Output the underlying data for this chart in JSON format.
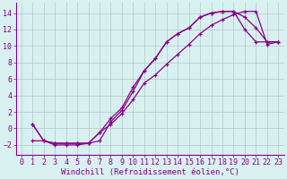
{
  "background_color": "#d8f0f0",
  "line_color": "#880088",
  "grid_color": "#b0c8c8",
  "xlabel": "Windchill (Refroidissement éolien,°C)",
  "xlabel_fontsize": 6.5,
  "tick_fontsize": 6.0,
  "xlim": [
    -0.5,
    23.5
  ],
  "ylim": [
    -3.2,
    15.2
  ],
  "yticks": [
    -2,
    0,
    2,
    4,
    6,
    8,
    10,
    12,
    14
  ],
  "xticks": [
    0,
    1,
    2,
    3,
    4,
    5,
    6,
    7,
    8,
    9,
    10,
    11,
    12,
    13,
    14,
    15,
    16,
    17,
    18,
    19,
    20,
    21,
    22,
    23
  ],
  "series1_x": [
    1,
    2,
    3,
    4,
    5,
    6,
    7,
    8,
    9,
    10,
    11,
    12,
    13,
    14,
    15,
    16,
    17,
    18,
    19,
    20,
    21,
    22,
    23
  ],
  "series1_y": [
    0.5,
    -1.5,
    -1.8,
    -1.8,
    -1.8,
    -1.8,
    -1.5,
    0.8,
    2.2,
    4.5,
    7.0,
    8.5,
    10.5,
    11.5,
    12.2,
    13.5,
    14.0,
    14.2,
    14.2,
    13.5,
    12.2,
    10.5,
    10.5
  ],
  "series2_x": [
    1,
    2,
    3,
    4,
    5,
    6,
    7,
    8,
    9,
    10,
    11,
    12,
    13,
    14,
    15,
    16,
    17,
    18,
    19,
    20,
    21,
    22,
    23
  ],
  "series2_y": [
    0.5,
    -1.5,
    -1.8,
    -1.8,
    -1.8,
    -1.8,
    -0.5,
    1.2,
    2.5,
    5.0,
    7.0,
    8.5,
    10.5,
    11.5,
    12.2,
    13.5,
    14.0,
    14.2,
    14.2,
    12.0,
    10.5,
    10.5,
    10.5
  ],
  "series3_x": [
    1,
    2,
    3,
    4,
    5,
    6,
    7,
    8,
    9,
    10,
    11,
    12,
    13,
    14,
    15,
    16,
    17,
    18,
    19,
    20,
    21,
    22,
    23
  ],
  "series3_y": [
    -1.5,
    -1.5,
    -2.0,
    -2.0,
    -2.0,
    -1.8,
    -0.5,
    0.5,
    1.8,
    3.5,
    5.5,
    6.5,
    7.8,
    9.0,
    10.2,
    11.5,
    12.5,
    13.2,
    13.8,
    14.2,
    14.2,
    10.2,
    10.5
  ]
}
